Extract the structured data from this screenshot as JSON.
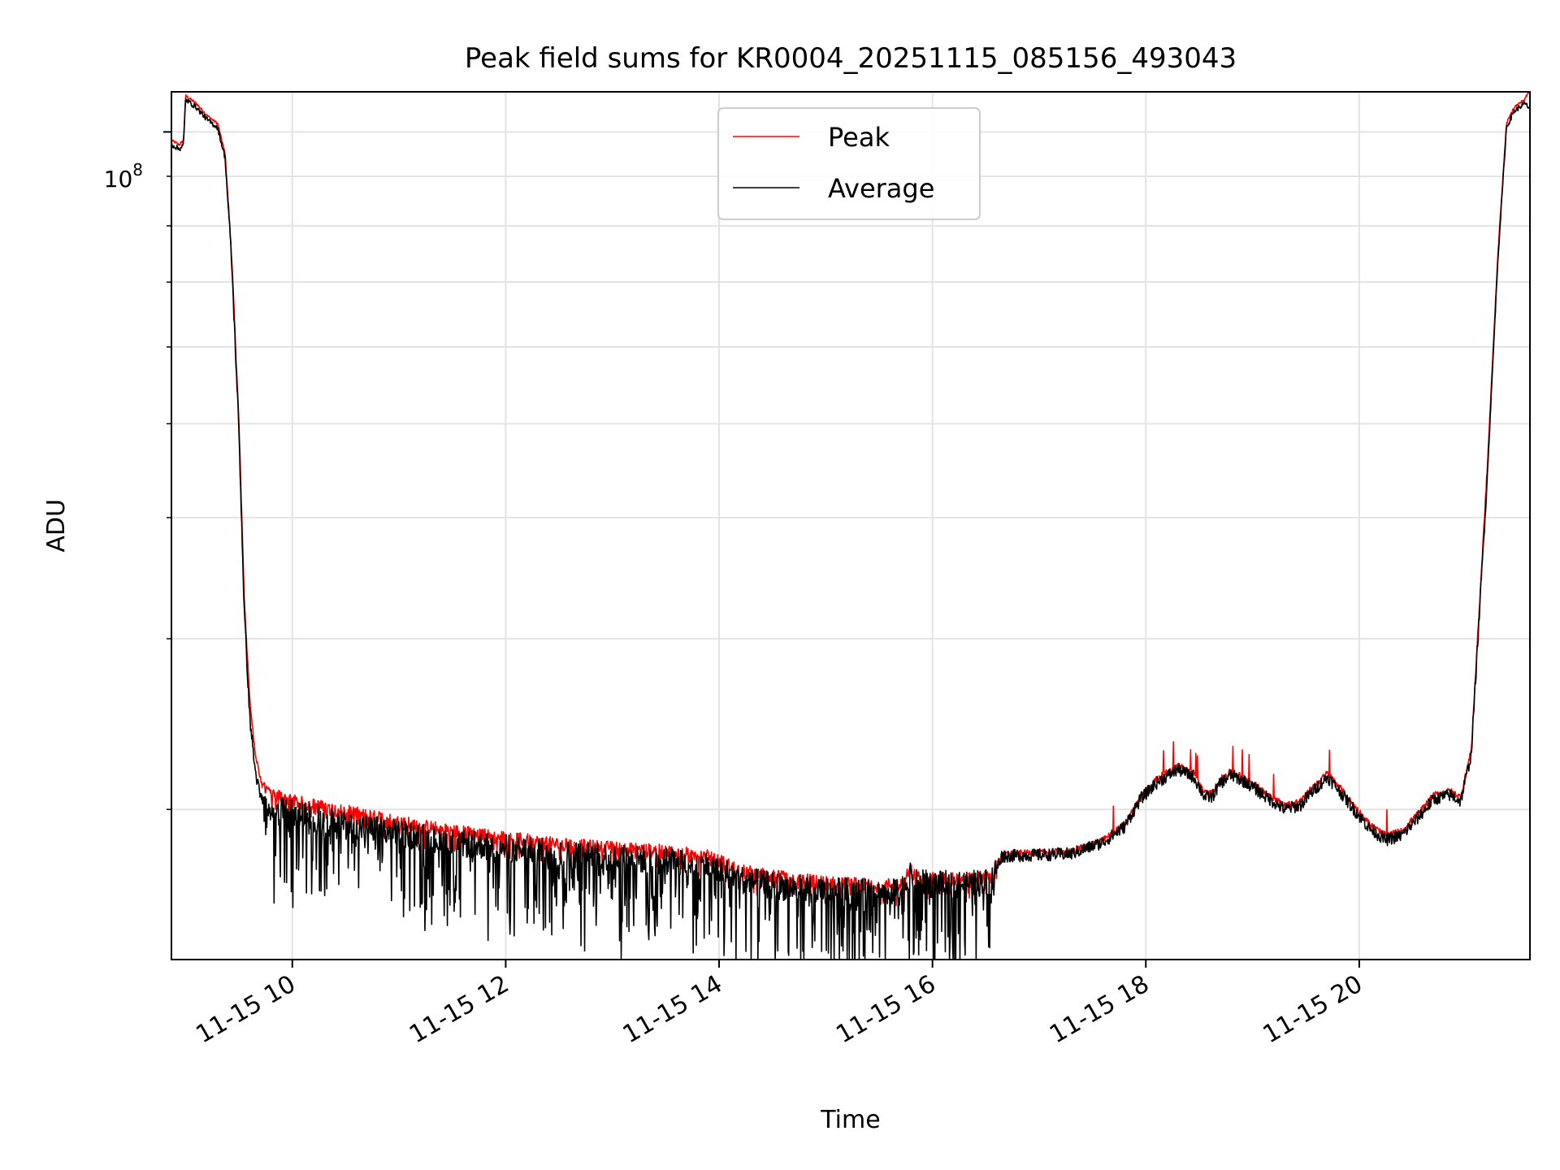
{
  "chart_data": {
    "type": "line",
    "title": "Peak field sums for KR0004_20251115_085156_493043",
    "xlabel": "Time",
    "ylabel": "ADU",
    "yscale": "log",
    "ylim": [
      14000000,
      110000000
    ],
    "xlim": [
      8.867,
      21.6
    ],
    "grid": true,
    "legend_position": "top-center",
    "ytick_label": {
      "base": "10",
      "exponent": "8",
      "value": 100000000
    },
    "xticks": [
      {
        "value": 10,
        "label": "11-15 10"
      },
      {
        "value": 12,
        "label": "11-15 12"
      },
      {
        "value": 14,
        "label": "11-15 14"
      },
      {
        "value": 16,
        "label": "11-15 16"
      },
      {
        "value": 18,
        "label": "11-15 18"
      },
      {
        "value": 20,
        "label": "11-15 20"
      }
    ],
    "series": [
      {
        "name": "Peak",
        "color": "#ff0000",
        "noise": 0.015,
        "points": [
          [
            8.87,
            98000000
          ],
          [
            8.94,
            97000000
          ],
          [
            8.98,
            98000000
          ],
          [
            9.0,
            109000000
          ],
          [
            9.1,
            107000000
          ],
          [
            9.2,
            104000000
          ],
          [
            9.3,
            102000000
          ],
          [
            9.37,
            95000000
          ],
          [
            9.43,
            75000000
          ],
          [
            9.5,
            50000000
          ],
          [
            9.55,
            33000000
          ],
          [
            9.6,
            26000000
          ],
          [
            9.65,
            23000000
          ],
          [
            9.7,
            21500000
          ],
          [
            9.8,
            20800000
          ],
          [
            10.0,
            20400000
          ],
          [
            10.3,
            20100000
          ],
          [
            10.6,
            19800000
          ],
          [
            11.0,
            19400000
          ],
          [
            11.5,
            19000000
          ],
          [
            12.0,
            18700000
          ],
          [
            12.5,
            18400000
          ],
          [
            13.0,
            18250000
          ],
          [
            13.5,
            18100000
          ],
          [
            13.9,
            17900000
          ],
          [
            14.0,
            17700000
          ],
          [
            14.2,
            17300000
          ],
          [
            14.5,
            17050000
          ],
          [
            15.0,
            16800000
          ],
          [
            15.5,
            16700000
          ],
          [
            15.7,
            16750000
          ],
          [
            15.8,
            17300000
          ],
          [
            15.85,
            17000000
          ],
          [
            16.0,
            16950000
          ],
          [
            16.3,
            16950000
          ],
          [
            16.55,
            17050000
          ],
          [
            16.65,
            18000000
          ],
          [
            17.0,
            18050000
          ],
          [
            17.3,
            18100000
          ],
          [
            17.6,
            18600000
          ],
          [
            17.8,
            19300000
          ],
          [
            17.95,
            20600000
          ],
          [
            18.1,
            21500000
          ],
          [
            18.3,
            22200000
          ],
          [
            18.45,
            21800000
          ],
          [
            18.55,
            20800000
          ],
          [
            18.62,
            20800000
          ],
          [
            18.7,
            21500000
          ],
          [
            18.8,
            21900000
          ],
          [
            18.95,
            21500000
          ],
          [
            19.1,
            20900000
          ],
          [
            19.3,
            20200000
          ],
          [
            19.45,
            20400000
          ],
          [
            19.55,
            21000000
          ],
          [
            19.7,
            21800000
          ],
          [
            19.8,
            21200000
          ],
          [
            19.95,
            20200000
          ],
          [
            20.1,
            19300000
          ],
          [
            20.25,
            18800000
          ],
          [
            20.4,
            19000000
          ],
          [
            20.55,
            19800000
          ],
          [
            20.7,
            20700000
          ],
          [
            20.85,
            20900000
          ],
          [
            20.95,
            20600000
          ],
          [
            21.05,
            23000000
          ],
          [
            21.2,
            45000000
          ],
          [
            21.3,
            75000000
          ],
          [
            21.38,
            102000000
          ],
          [
            21.45,
            106000000
          ],
          [
            21.55,
            108000000
          ],
          [
            21.59,
            110000000
          ]
        ]
      },
      {
        "name": "Average",
        "color": "#000000",
        "noise": 0.03,
        "points": [
          [
            8.87,
            97000000
          ],
          [
            8.94,
            96000000
          ],
          [
            8.98,
            97000000
          ],
          [
            9.0,
            108000000
          ],
          [
            9.1,
            106000000
          ],
          [
            9.2,
            103000000
          ],
          [
            9.3,
            101000000
          ],
          [
            9.37,
            94000000
          ],
          [
            9.43,
            74000000
          ],
          [
            9.5,
            49000000
          ],
          [
            9.55,
            32000000
          ],
          [
            9.6,
            25000000
          ],
          [
            9.65,
            22000000
          ],
          [
            9.7,
            20600000
          ],
          [
            9.8,
            20000000
          ],
          [
            10.0,
            19800000
          ],
          [
            10.3,
            19500000
          ],
          [
            10.6,
            19200000
          ],
          [
            11.0,
            18900000
          ],
          [
            11.5,
            18500000
          ],
          [
            12.0,
            18250000
          ],
          [
            12.5,
            18000000
          ],
          [
            13.0,
            17850000
          ],
          [
            13.5,
            17700000
          ],
          [
            13.9,
            17500000
          ],
          [
            14.0,
            17300000
          ],
          [
            14.2,
            16950000
          ],
          [
            14.5,
            16700000
          ],
          [
            15.0,
            16500000
          ],
          [
            15.5,
            16400000
          ],
          [
            15.7,
            16450000
          ],
          [
            15.8,
            17100000
          ],
          [
            15.85,
            16800000
          ],
          [
            16.0,
            16750000
          ],
          [
            16.3,
            16750000
          ],
          [
            16.55,
            16850000
          ],
          [
            16.65,
            17900000
          ],
          [
            17.0,
            17950000
          ],
          [
            17.3,
            18000000
          ],
          [
            17.6,
            18500000
          ],
          [
            17.8,
            19200000
          ],
          [
            17.95,
            20500000
          ],
          [
            18.1,
            21300000
          ],
          [
            18.3,
            22000000
          ],
          [
            18.45,
            21600000
          ],
          [
            18.55,
            20600000
          ],
          [
            18.62,
            20600000
          ],
          [
            18.7,
            21300000
          ],
          [
            18.8,
            21700000
          ],
          [
            18.95,
            21300000
          ],
          [
            19.1,
            20700000
          ],
          [
            19.3,
            20000000
          ],
          [
            19.45,
            20200000
          ],
          [
            19.55,
            20800000
          ],
          [
            19.7,
            21600000
          ],
          [
            19.8,
            21000000
          ],
          [
            19.95,
            20000000
          ],
          [
            20.1,
            19100000
          ],
          [
            20.25,
            18600000
          ],
          [
            20.4,
            18800000
          ],
          [
            20.55,
            19600000
          ],
          [
            20.7,
            20500000
          ],
          [
            20.85,
            20700000
          ],
          [
            20.95,
            20400000
          ],
          [
            21.05,
            22800000
          ],
          [
            21.2,
            44000000
          ],
          [
            21.3,
            74000000
          ],
          [
            21.38,
            101000000
          ],
          [
            21.45,
            105000000
          ],
          [
            21.55,
            107000000
          ],
          [
            21.59,
            106000000
          ]
        ]
      }
    ]
  }
}
